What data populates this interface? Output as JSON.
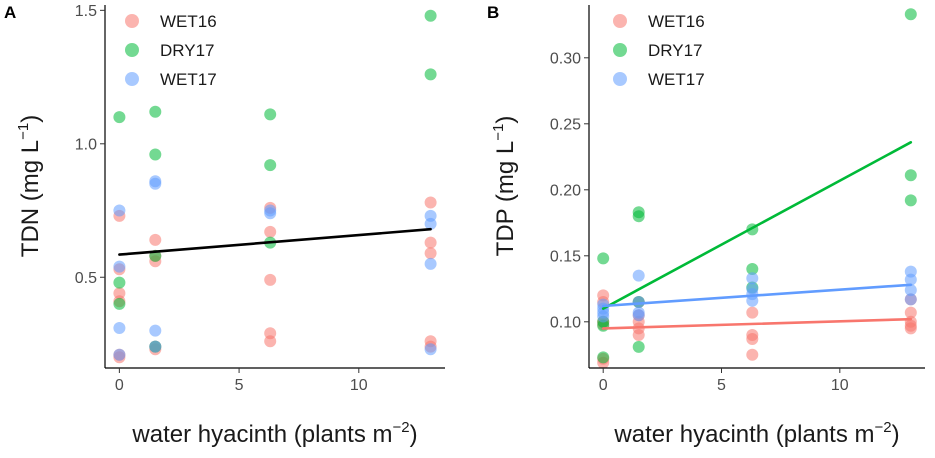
{
  "chart_data": [
    {
      "panel": "A",
      "type": "scatter",
      "xlabel": "water hyacinth (plants m",
      "xlabel_sup": "−2",
      "xlabel_close": ")",
      "ylabel": "TDN (mg L",
      "ylabel_sup": "−1",
      "ylabel_close": ")",
      "xlim": [
        -0.6,
        13.6
      ],
      "ylim": [
        0.16,
        1.52
      ],
      "xticks": [
        0,
        5,
        10
      ],
      "xtick_labels": [
        "0",
        "5",
        "10"
      ],
      "yticks": [
        0.5,
        1.0,
        1.5
      ],
      "ytick_labels": [
        "0.5",
        "1.0",
        "1.5"
      ],
      "legend": [
        "WET16",
        "DRY17",
        "WET17"
      ],
      "legend_position": "top-left",
      "series": [
        {
          "name": "WET16",
          "color": "#F8766D",
          "points": [
            [
              0,
              0.73
            ],
            [
              0,
              0.53
            ],
            [
              0,
              0.44
            ],
            [
              0,
              0.41
            ],
            [
              0,
              0.21
            ],
            [
              0,
              0.2
            ],
            [
              1.5,
              0.64
            ],
            [
              1.5,
              0.56
            ],
            [
              1.5,
              0.58
            ],
            [
              1.5,
              0.24
            ],
            [
              1.5,
              0.23
            ],
            [
              6.3,
              0.76
            ],
            [
              6.3,
              0.67
            ],
            [
              6.3,
              0.49
            ],
            [
              6.3,
              0.29
            ],
            [
              6.3,
              0.26
            ],
            [
              13,
              0.78
            ],
            [
              13,
              0.63
            ],
            [
              13,
              0.59
            ],
            [
              13,
              0.26
            ],
            [
              13,
              0.24
            ]
          ]
        },
        {
          "name": "DRY17",
          "color": "#00BA38",
          "points": [
            [
              0,
              1.1
            ],
            [
              0,
              0.48
            ],
            [
              0,
              0.4
            ],
            [
              1.5,
              1.12
            ],
            [
              1.5,
              0.96
            ],
            [
              1.5,
              0.58
            ],
            [
              1.5,
              0.24
            ],
            [
              6.3,
              1.11
            ],
            [
              6.3,
              0.92
            ],
            [
              6.3,
              0.63
            ],
            [
              13,
              1.48
            ],
            [
              13,
              1.26
            ]
          ]
        },
        {
          "name": "WET17",
          "color": "#619CFF",
          "points": [
            [
              0,
              0.75
            ],
            [
              0,
              0.54
            ],
            [
              0,
              0.31
            ],
            [
              0,
              0.21
            ],
            [
              1.5,
              0.86
            ],
            [
              1.5,
              0.85
            ],
            [
              1.5,
              0.3
            ],
            [
              1.5,
              0.24
            ],
            [
              6.3,
              0.75
            ],
            [
              6.3,
              0.74
            ],
            [
              13,
              0.73
            ],
            [
              13,
              0.7
            ],
            [
              13,
              0.55
            ],
            [
              13,
              0.23
            ]
          ]
        }
      ],
      "trend_lines": [
        {
          "name": "overall",
          "color": "#000000",
          "x": [
            0,
            13
          ],
          "y": [
            0.585,
            0.68
          ]
        }
      ]
    },
    {
      "panel": "B",
      "type": "scatter",
      "xlabel": "water hyacinth (plants m",
      "xlabel_sup": "−2",
      "xlabel_close": ")",
      "ylabel": "TDP (mg L",
      "ylabel_sup": "−1",
      "ylabel_close": ")",
      "xlim": [
        -0.6,
        13.6
      ],
      "ylim": [
        0.065,
        0.34
      ],
      "xticks": [
        0,
        5,
        10
      ],
      "xtick_labels": [
        "0",
        "5",
        "10"
      ],
      "yticks": [
        0.1,
        0.15,
        0.2,
        0.25,
        0.3
      ],
      "ytick_labels": [
        "0.10",
        "0.15",
        "0.20",
        "0.25",
        "0.30"
      ],
      "legend": [
        "WET16",
        "DRY17",
        "WET17"
      ],
      "legend_position": "top-left",
      "series": [
        {
          "name": "WET16",
          "color": "#F8766D",
          "points": [
            [
              0,
              0.12
            ],
            [
              0,
              0.115
            ],
            [
              0,
              0.1
            ],
            [
              0,
              0.098
            ],
            [
              0,
              0.072
            ],
            [
              0,
              0.069
            ],
            [
              1.5,
              0.115
            ],
            [
              1.5,
              0.105
            ],
            [
              1.5,
              0.1
            ],
            [
              1.5,
              0.095
            ],
            [
              1.5,
              0.09
            ],
            [
              6.3,
              0.107
            ],
            [
              6.3,
              0.09
            ],
            [
              6.3,
              0.087
            ],
            [
              6.3,
              0.075
            ],
            [
              13,
              0.117
            ],
            [
              13,
              0.107
            ],
            [
              13,
              0.1
            ],
            [
              13,
              0.097
            ],
            [
              13,
              0.095
            ]
          ]
        },
        {
          "name": "DRY17",
          "color": "#00BA38",
          "points": [
            [
              0,
              0.148
            ],
            [
              0,
              0.1
            ],
            [
              0,
              0.097
            ],
            [
              0,
              0.073
            ],
            [
              1.5,
              0.183
            ],
            [
              1.5,
              0.18
            ],
            [
              1.5,
              0.115
            ],
            [
              1.5,
              0.081
            ],
            [
              6.3,
              0.17
            ],
            [
              6.3,
              0.14
            ],
            [
              6.3,
              0.126
            ],
            [
              13,
              0.333
            ],
            [
              13,
              0.211
            ],
            [
              13,
              0.192
            ]
          ]
        },
        {
          "name": "WET17",
          "color": "#619CFF",
          "points": [
            [
              0,
              0.113
            ],
            [
              0,
              0.11
            ],
            [
              0,
              0.107
            ],
            [
              0,
              0.104
            ],
            [
              1.5,
              0.135
            ],
            [
              1.5,
              0.115
            ],
            [
              1.5,
              0.107
            ],
            [
              1.5,
              0.105
            ],
            [
              6.3,
              0.133
            ],
            [
              6.3,
              0.125
            ],
            [
              6.3,
              0.121
            ],
            [
              6.3,
              0.116
            ],
            [
              13,
              0.138
            ],
            [
              13,
              0.132
            ],
            [
              13,
              0.124
            ],
            [
              13,
              0.117
            ]
          ]
        }
      ],
      "trend_lines": [
        {
          "name": "WET16",
          "color": "#F8766D",
          "x": [
            0,
            13
          ],
          "y": [
            0.095,
            0.102
          ]
        },
        {
          "name": "DRY17",
          "color": "#00BA38",
          "x": [
            0,
            13
          ],
          "y": [
            0.11,
            0.236
          ]
        },
        {
          "name": "WET17",
          "color": "#619CFF",
          "x": [
            0,
            13
          ],
          "y": [
            0.112,
            0.128
          ]
        }
      ]
    }
  ]
}
